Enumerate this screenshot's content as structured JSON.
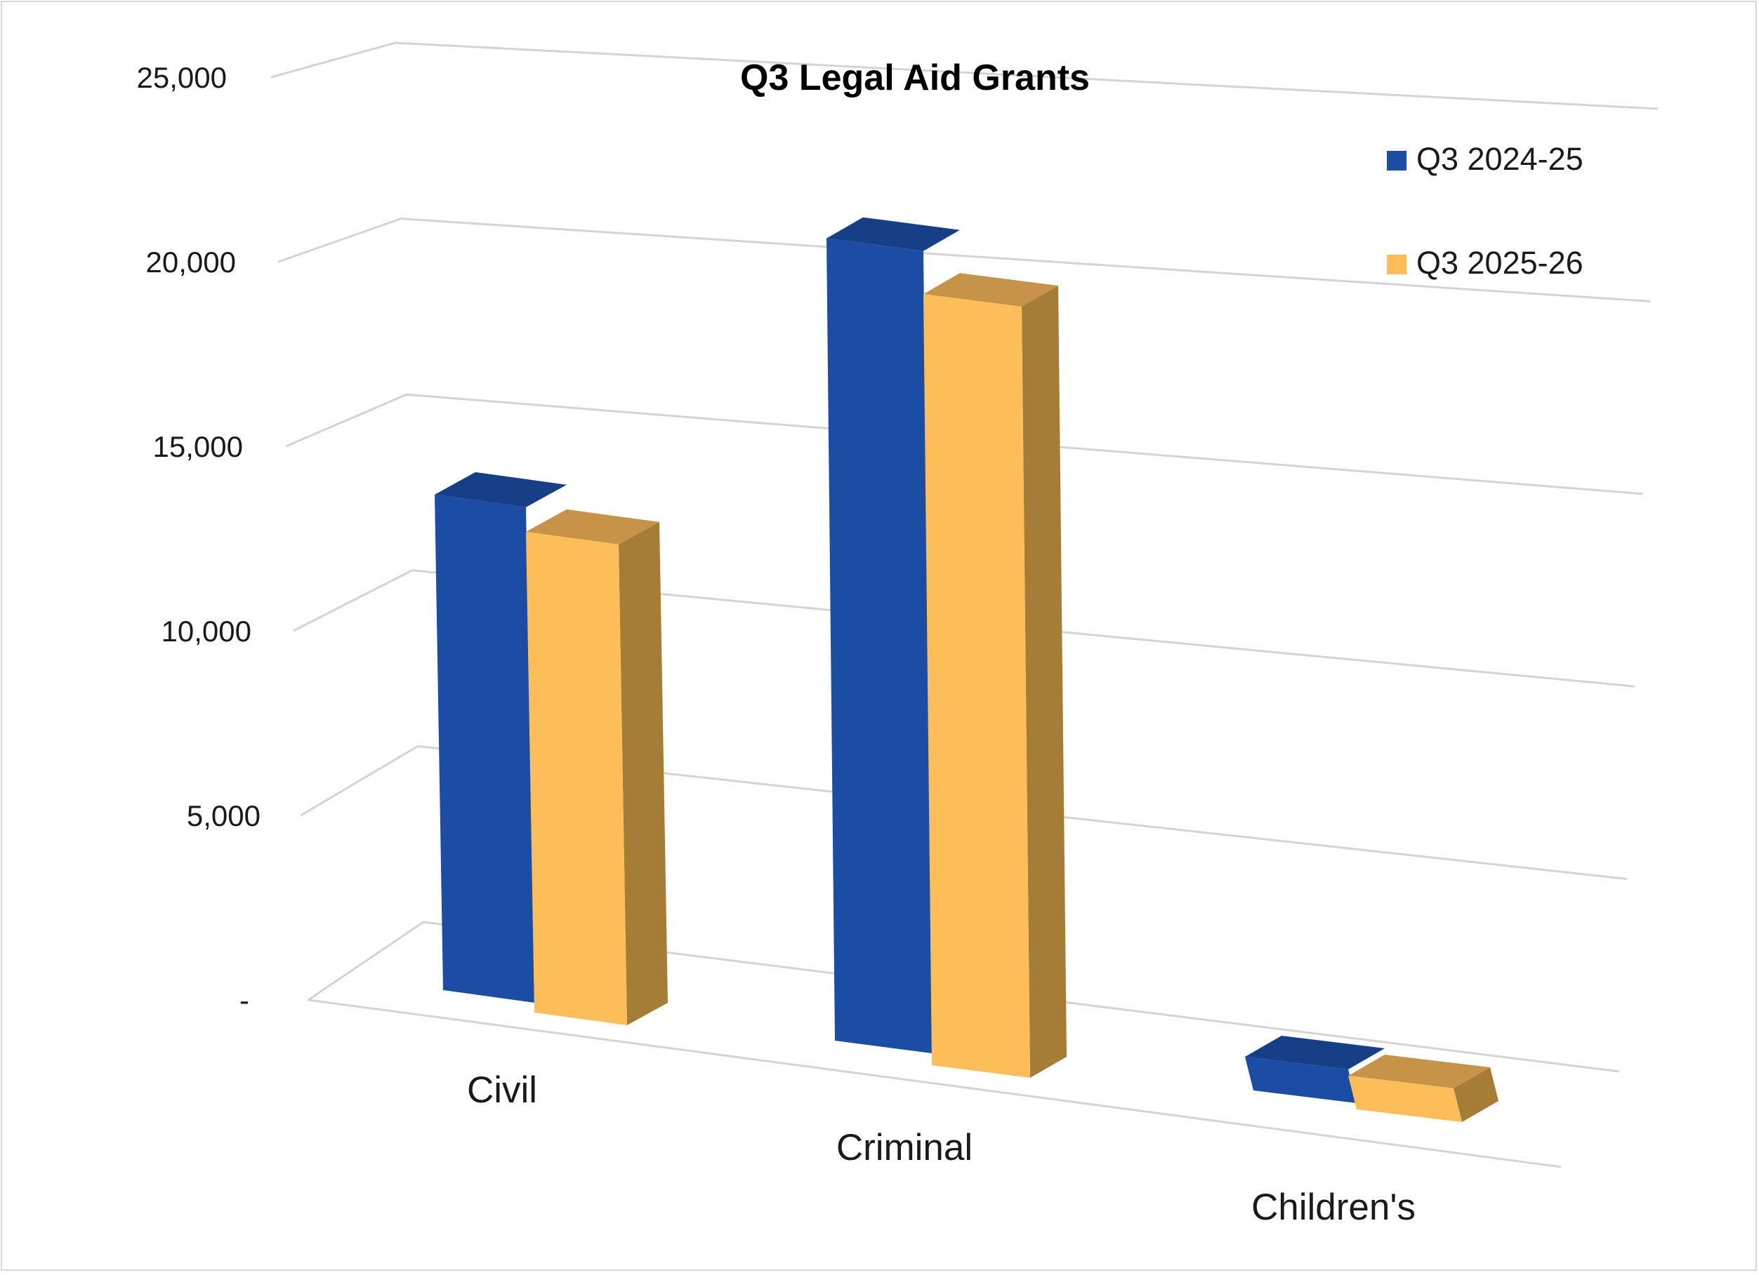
{
  "chart_data": {
    "type": "bar",
    "title": "Q3 Legal Aid Grants",
    "categories": [
      "Civil",
      "Criminal",
      "Children's"
    ],
    "series": [
      {
        "name": "Q3 2024-25",
        "values": [
          13400,
          20600,
          1000
        ],
        "color": "#1a4da3"
      },
      {
        "name": "Q3 2025-26",
        "values": [
          13000,
          19800,
          1000
        ],
        "color": "#fdbe59"
      }
    ],
    "y_ticks": [
      "-",
      "5,000",
      "10,000",
      "15,000",
      "20,000",
      "25,000"
    ],
    "ylim": [
      0,
      25000
    ],
    "grid": true,
    "legend_position": "top-right",
    "xlabel": "",
    "ylabel": ""
  }
}
